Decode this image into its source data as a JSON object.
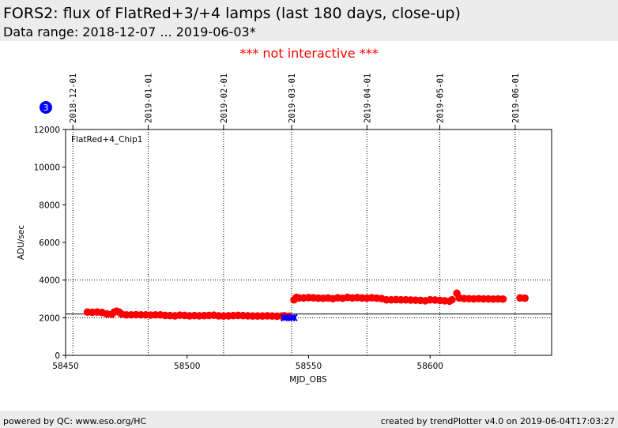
{
  "header": {
    "title": "FORS2: flux of FlatRed+3/+4 lamps (last 180 days, close-up)",
    "subtitle": "Data range: 2018-12-07 ... 2019-06-03*"
  },
  "notice": "*** not interactive ***",
  "badge": "3",
  "footer": {
    "left": "powered by QC: www.eso.org/HC",
    "right": "created by trendPlotter v4.0 on 2019-06-04T17:03:27"
  },
  "colors": {
    "red_series": "#ff0000",
    "blue_series": "#0000ff",
    "badge": "#0000ff"
  },
  "chart_data": {
    "type": "scatter",
    "panel_label": "FlatRed+4_Chip1",
    "xlabel": "MJD_OBS",
    "ylabel": "ADU/sec",
    "xlim": [
      58450,
      58650
    ],
    "ylim": [
      0,
      12000
    ],
    "x_ticks": [
      58450,
      58500,
      58550,
      58600
    ],
    "x_tick_labels": [
      "58450",
      "58500",
      "58550",
      "58600"
    ],
    "y_ticks": [
      0,
      2000,
      4000,
      6000,
      8000,
      10000,
      12000
    ],
    "y_tick_labels": [
      "0",
      "2000",
      "4000",
      "6000",
      "8000",
      "10000",
      "12000"
    ],
    "date_ticks": [
      {
        "label": "2018-12-01",
        "mjd": 58453
      },
      {
        "label": "2019-01-01",
        "mjd": 58484
      },
      {
        "label": "2019-02-01",
        "mjd": 58515
      },
      {
        "label": "2019-03-01",
        "mjd": 58543
      },
      {
        "label": "2019-04-01",
        "mjd": 58574
      },
      {
        "label": "2019-05-01",
        "mjd": 58604
      },
      {
        "label": "2019-06-01",
        "mjd": 58635
      }
    ],
    "grid_y": [
      2000,
      4000
    ],
    "reference_line_y": 2200,
    "series": [
      {
        "color": "#ff0000",
        "marker": "circle",
        "points": [
          [
            58459,
            2300
          ],
          [
            58461,
            2290
          ],
          [
            58463,
            2300
          ],
          [
            58465,
            2280
          ],
          [
            58467,
            2200
          ],
          [
            58469,
            2180
          ],
          [
            58470,
            2300
          ],
          [
            58471,
            2340
          ],
          [
            58472,
            2300
          ],
          [
            58473,
            2200
          ],
          [
            58475,
            2150
          ],
          [
            58477,
            2150
          ],
          [
            58479,
            2160
          ],
          [
            58481,
            2150
          ],
          [
            58483,
            2150
          ],
          [
            58485,
            2140
          ],
          [
            58487,
            2150
          ],
          [
            58489,
            2150
          ],
          [
            58491,
            2120
          ],
          [
            58493,
            2110
          ],
          [
            58495,
            2100
          ],
          [
            58497,
            2130
          ],
          [
            58499,
            2120
          ],
          [
            58501,
            2100
          ],
          [
            58503,
            2110
          ],
          [
            58505,
            2100
          ],
          [
            58507,
            2110
          ],
          [
            58509,
            2120
          ],
          [
            58511,
            2130
          ],
          [
            58513,
            2100
          ],
          [
            58515,
            2090
          ],
          [
            58517,
            2100
          ],
          [
            58519,
            2110
          ],
          [
            58521,
            2120
          ],
          [
            58523,
            2110
          ],
          [
            58525,
            2100
          ],
          [
            58527,
            2090
          ],
          [
            58529,
            2090
          ],
          [
            58531,
            2090
          ],
          [
            58533,
            2100
          ],
          [
            58535,
            2090
          ],
          [
            58537,
            2080
          ],
          [
            58539,
            2090
          ],
          [
            58540,
            2100
          ],
          [
            58542,
            2080
          ],
          [
            58544,
            2950
          ],
          [
            58545,
            3080
          ],
          [
            58546,
            3050
          ],
          [
            58548,
            3050
          ],
          [
            58550,
            3070
          ],
          [
            58552,
            3060
          ],
          [
            58554,
            3040
          ],
          [
            58556,
            3030
          ],
          [
            58558,
            3050
          ],
          [
            58560,
            3010
          ],
          [
            58562,
            3060
          ],
          [
            58564,
            3030
          ],
          [
            58566,
            3080
          ],
          [
            58568,
            3050
          ],
          [
            58570,
            3070
          ],
          [
            58572,
            3050
          ],
          [
            58574,
            3040
          ],
          [
            58576,
            3060
          ],
          [
            58578,
            3040
          ],
          [
            58580,
            3020
          ],
          [
            58582,
            2950
          ],
          [
            58584,
            2950
          ],
          [
            58586,
            2960
          ],
          [
            58588,
            2950
          ],
          [
            58590,
            2950
          ],
          [
            58592,
            2940
          ],
          [
            58594,
            2930
          ],
          [
            58596,
            2920
          ],
          [
            58598,
            2900
          ],
          [
            58600,
            2950
          ],
          [
            58602,
            2940
          ],
          [
            58604,
            2920
          ],
          [
            58606,
            2900
          ],
          [
            58608,
            2880
          ],
          [
            58609,
            2950
          ],
          [
            58611,
            3300
          ],
          [
            58612,
            3050
          ],
          [
            58614,
            3020
          ],
          [
            58616,
            3010
          ],
          [
            58618,
            3000
          ],
          [
            58620,
            3010
          ],
          [
            58622,
            3000
          ],
          [
            58624,
            3000
          ],
          [
            58626,
            2990
          ],
          [
            58628,
            3000
          ],
          [
            58630,
            2990
          ],
          [
            58637,
            3050
          ],
          [
            58639,
            3040
          ]
        ]
      },
      {
        "color": "#0000ff",
        "marker": "x",
        "points": [
          [
            58540,
            1990
          ],
          [
            58541,
            2010
          ],
          [
            58543,
            1990
          ],
          [
            58544,
            2000
          ]
        ]
      }
    ]
  }
}
